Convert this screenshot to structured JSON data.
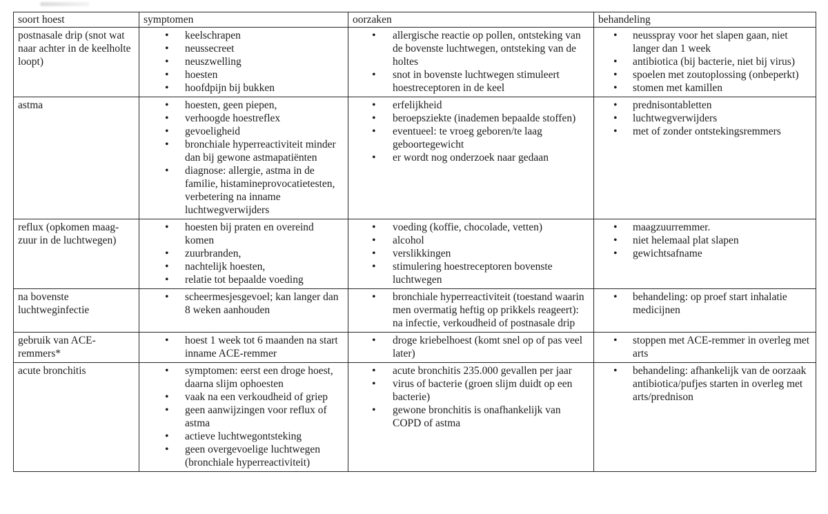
{
  "table": {
    "headers": [
      "soort hoest",
      "symptomen",
      "oorzaken",
      "behandeling"
    ],
    "rows": [
      {
        "soort": "postnasale drip (snot wat naar achter in de keelholte loopt)",
        "symptomen": [
          "keelschrapen",
          "neussecreet",
          "neuszwelling",
          "hoesten",
          "hoofdpijn bij bukken"
        ],
        "oorzaken": [
          "allergische reactie op pollen, ontsteking van de bovenste luchtwegen, ontsteking van de holtes",
          "snot in bovenste luchtwegen stimuleert hoestreceptoren in de keel"
        ],
        "behandeling": [
          "neusspray voor het slapen gaan, niet langer dan 1 week",
          "antibiotica (bij bacterie, niet bij virus)",
          "spoelen met zoutoplossing (onbeperkt)",
          "stomen met kamillen"
        ]
      },
      {
        "soort": "astma",
        "symptomen": [
          "hoesten, geen piepen,",
          "verhoogde hoestreflex",
          "gevoeligheid",
          "bronchiale hyperreactiviteit minder dan bij gewone astmapatiënten",
          "diagnose: allergie, astma in de familie, histamineprovocatietesten, verbetering na inname luchtwegverwijders"
        ],
        "oorzaken": [
          "erfelijkheid",
          "beroepsziekte (inademen bepaalde stoffen)",
          "eventueel: te vroeg geboren/te laag geboortegewicht",
          "er wordt nog onderzoek naar gedaan"
        ],
        "behandeling": [
          "prednisontabletten",
          "luchtwegverwijders",
          "met of zonder ontstekingsremmers"
        ]
      },
      {
        "soort": "reflux (opkomen maag-zuur in de luchtwegen)",
        "symptomen": [
          "hoesten bij praten en overeind komen",
          "zuurbranden,",
          "nachtelijk hoesten,",
          "relatie tot bepaalde voeding"
        ],
        "oorzaken": [
          "voeding (koffie, chocolade, vetten)",
          "alcohol",
          "verslikkingen",
          "stimulering hoestreceptoren bovenste luchtwegen"
        ],
        "behandeling": [
          "maagzuurremmer.",
          "niet helemaal plat slapen",
          "gewichtsafname"
        ]
      },
      {
        "soort": "na bovenste luchtweginfectie",
        "symptomen": [
          "scheermesjesgevoel; kan langer dan 8 weken aanhouden"
        ],
        "oorzaken": [
          "bronchiale hyperreactiviteit (toestand waarin men overmatig heftig op prikkels reageert): na infectie, verkoudheid of postnasale drip"
        ],
        "behandeling": [
          "behandeling: op proef start inhalatie medicijnen"
        ]
      },
      {
        "soort": "gebruik van ACE-remmers*",
        "symptomen": [
          "hoest 1 week tot 6 maanden na start inname ACE-remmer"
        ],
        "oorzaken": [
          "droge kriebelhoest (komt snel op of pas veel later)"
        ],
        "behandeling": [
          "stoppen met ACE-remmer in overleg met arts"
        ]
      },
      {
        "soort": "acute bronchitis",
        "symptomen": [
          "symptomen: eerst een droge hoest, daarna slijm ophoesten",
          "vaak na een verkoudheid of griep",
          "geen aanwijzingen voor reflux of astma",
          "actieve luchtwegontsteking",
          "geen overgevoelige luchtwegen (bronchiale hyperreactiviteit)"
        ],
        "oorzaken": [
          "acute bronchitis  235.000 gevallen per jaar",
          "virus of bacterie (groen slijm duidt op een bacterie)",
          "gewone bronchitis is onafhankelijk van COPD of astma"
        ],
        "behandeling": [
          "behandeling: afhankelijk van de oorzaak antibiotica/pufjes starten in overleg met arts/prednison"
        ]
      }
    ]
  }
}
